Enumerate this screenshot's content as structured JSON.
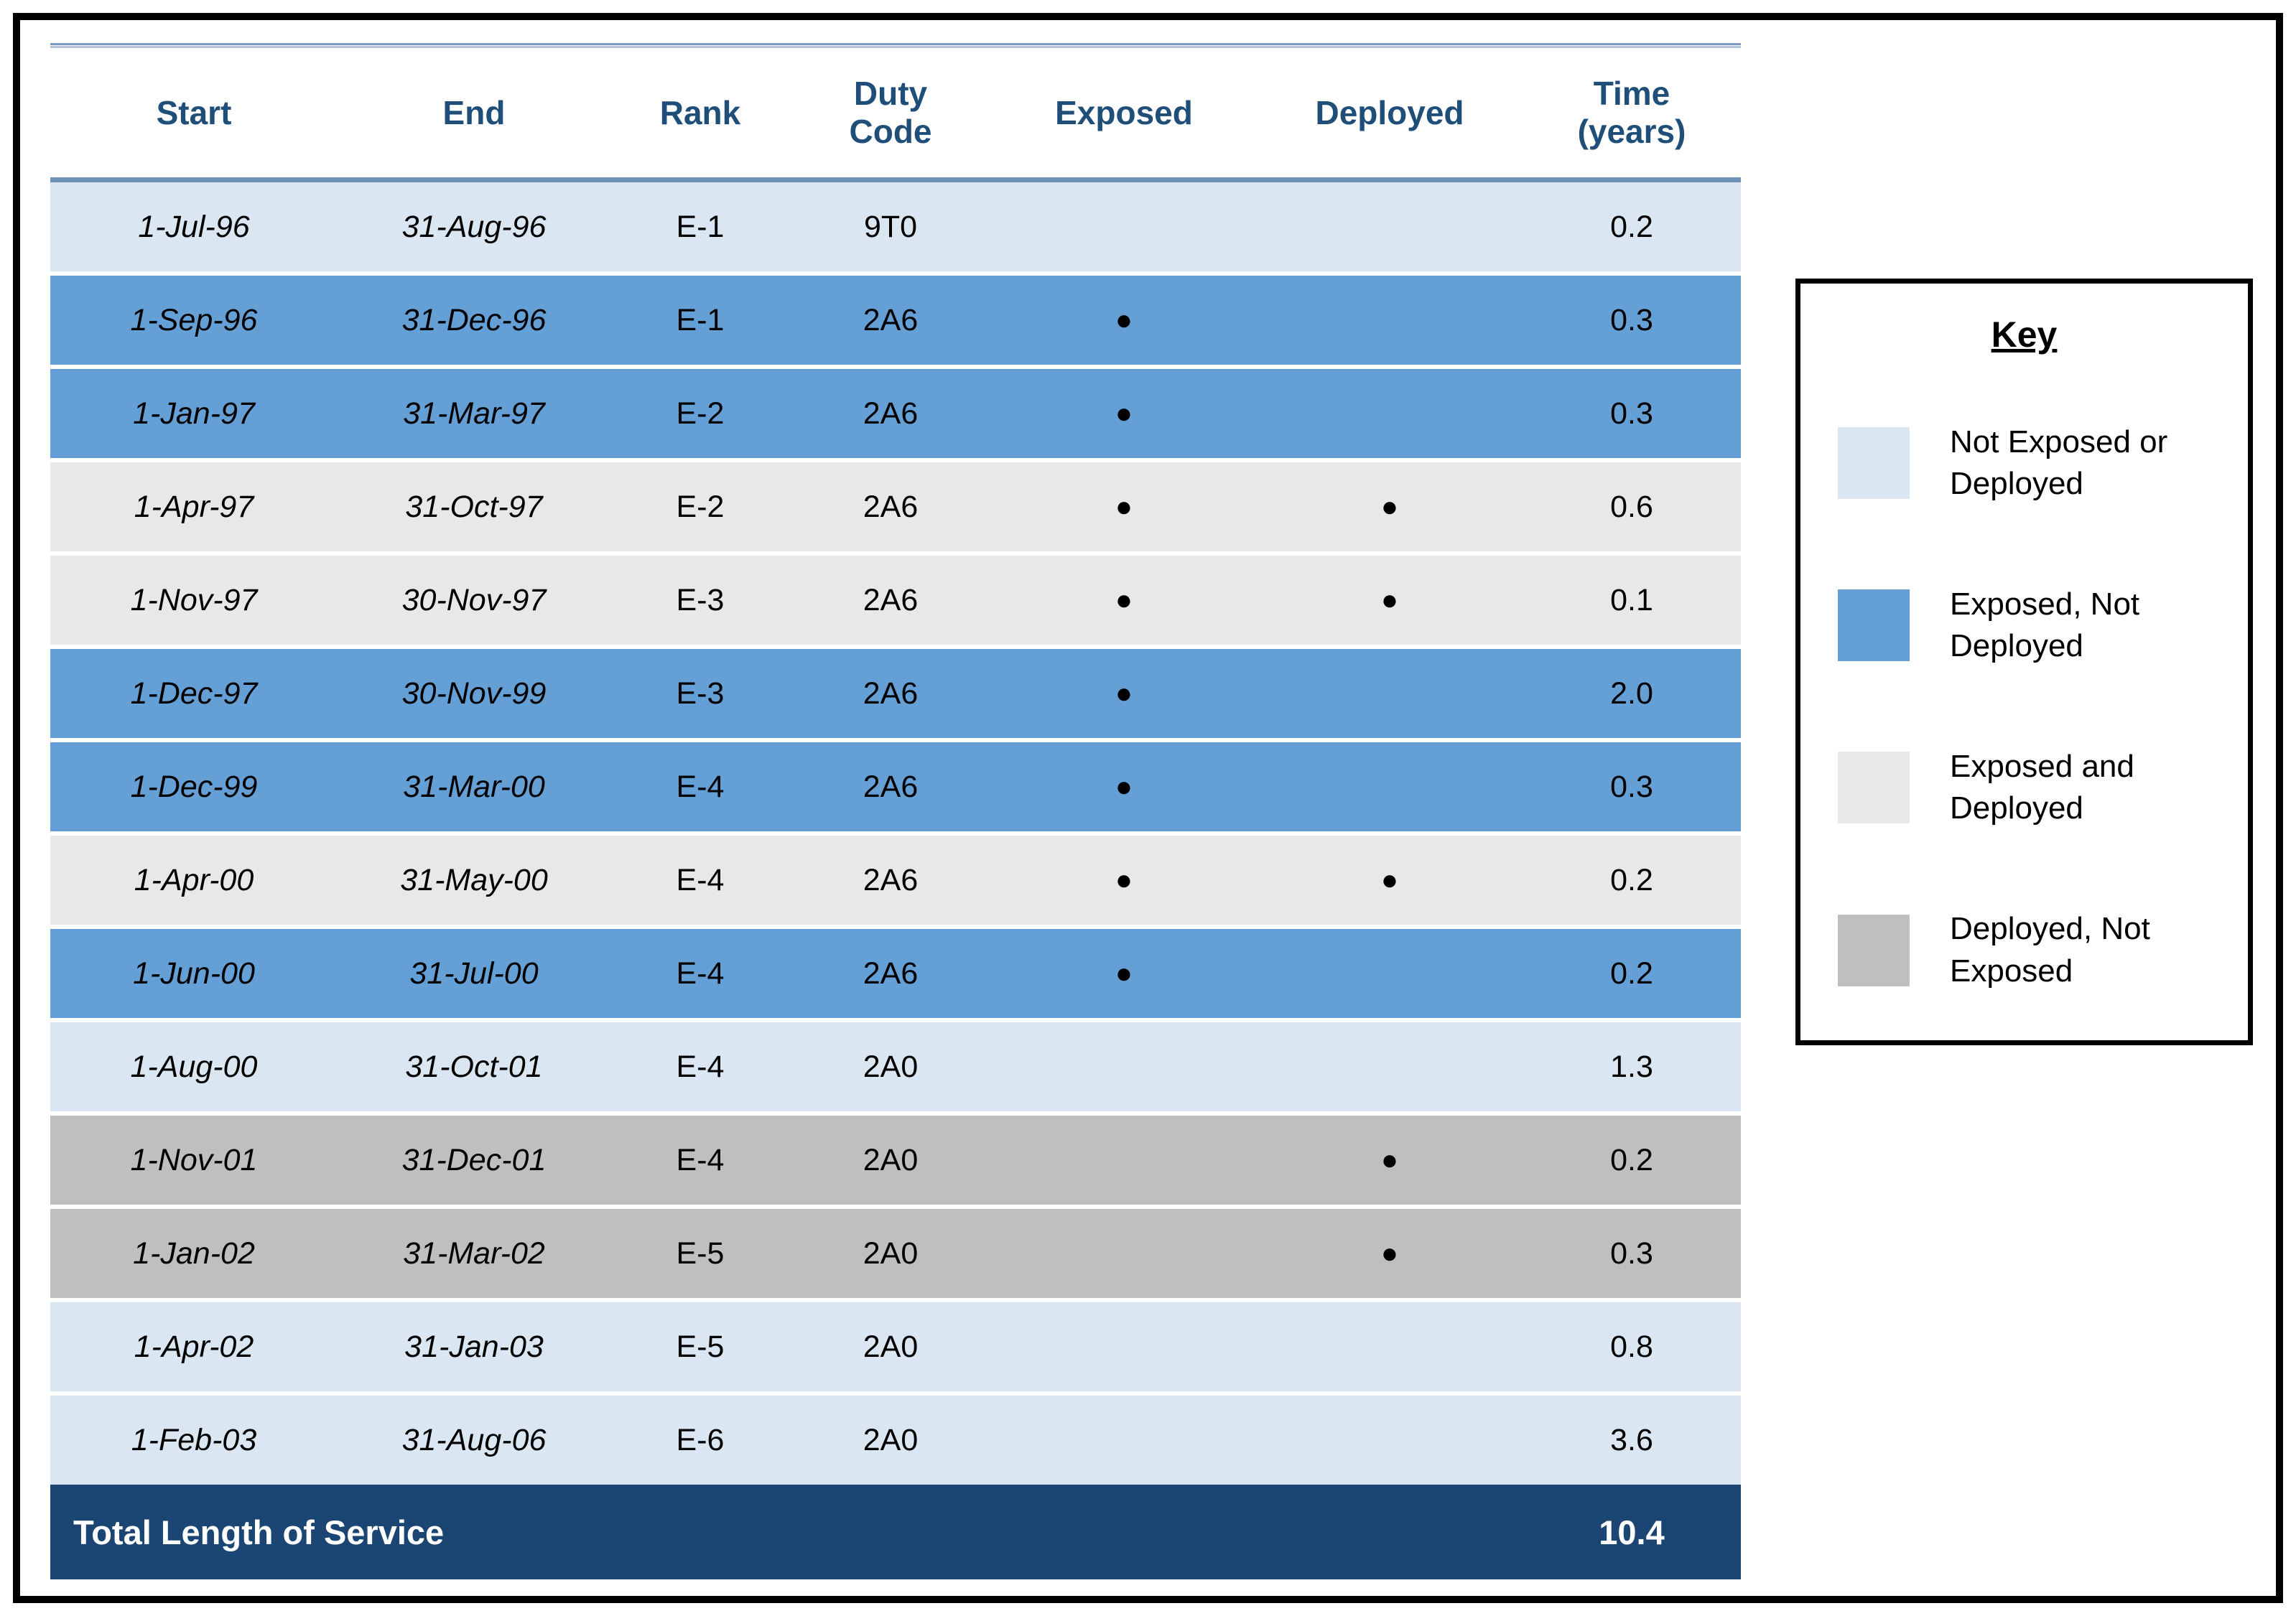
{
  "chart_data": {
    "type": "table",
    "columns": [
      "Start",
      "End",
      "Rank",
      "Duty\nCode",
      "Exposed",
      "Deployed",
      "Time\n(years)"
    ],
    "rows": [
      {
        "start": "1-Jul-96",
        "end": "31-Aug-96",
        "rank": "E-1",
        "duty_code": "9T0",
        "exposed": false,
        "deployed": false,
        "time_years": "0.2",
        "status": "not_exposed_or_deployed"
      },
      {
        "start": "1-Sep-96",
        "end": "31-Dec-96",
        "rank": "E-1",
        "duty_code": "2A6",
        "exposed": true,
        "deployed": false,
        "time_years": "0.3",
        "status": "exposed_not_deployed"
      },
      {
        "start": "1-Jan-97",
        "end": "31-Mar-97",
        "rank": "E-2",
        "duty_code": "2A6",
        "exposed": true,
        "deployed": false,
        "time_years": "0.3",
        "status": "exposed_not_deployed"
      },
      {
        "start": "1-Apr-97",
        "end": "31-Oct-97",
        "rank": "E-2",
        "duty_code": "2A6",
        "exposed": true,
        "deployed": true,
        "time_years": "0.6",
        "status": "exposed_and_deployed"
      },
      {
        "start": "1-Nov-97",
        "end": "30-Nov-97",
        "rank": "E-3",
        "duty_code": "2A6",
        "exposed": true,
        "deployed": true,
        "time_years": "0.1",
        "status": "exposed_and_deployed"
      },
      {
        "start": "1-Dec-97",
        "end": "30-Nov-99",
        "rank": "E-3",
        "duty_code": "2A6",
        "exposed": true,
        "deployed": false,
        "time_years": "2.0",
        "status": "exposed_not_deployed"
      },
      {
        "start": "1-Dec-99",
        "end": "31-Mar-00",
        "rank": "E-4",
        "duty_code": "2A6",
        "exposed": true,
        "deployed": false,
        "time_years": "0.3",
        "status": "exposed_not_deployed"
      },
      {
        "start": "1-Apr-00",
        "end": "31-May-00",
        "rank": "E-4",
        "duty_code": "2A6",
        "exposed": true,
        "deployed": true,
        "time_years": "0.2",
        "status": "exposed_and_deployed"
      },
      {
        "start": "1-Jun-00",
        "end": "31-Jul-00",
        "rank": "E-4",
        "duty_code": "2A6",
        "exposed": true,
        "deployed": false,
        "time_years": "0.2",
        "status": "exposed_not_deployed"
      },
      {
        "start": "1-Aug-00",
        "end": "31-Oct-01",
        "rank": "E-4",
        "duty_code": "2A0",
        "exposed": false,
        "deployed": false,
        "time_years": "1.3",
        "status": "not_exposed_or_deployed"
      },
      {
        "start": "1-Nov-01",
        "end": "31-Dec-01",
        "rank": "E-4",
        "duty_code": "2A0",
        "exposed": false,
        "deployed": true,
        "time_years": "0.2",
        "status": "deployed_not_exposed"
      },
      {
        "start": "1-Jan-02",
        "end": "31-Mar-02",
        "rank": "E-5",
        "duty_code": "2A0",
        "exposed": false,
        "deployed": true,
        "time_years": "0.3",
        "status": "deployed_not_exposed"
      },
      {
        "start": "1-Apr-02",
        "end": "31-Jan-03",
        "rank": "E-5",
        "duty_code": "2A0",
        "exposed": false,
        "deployed": false,
        "time_years": "0.8",
        "status": "not_exposed_or_deployed"
      },
      {
        "start": "1-Feb-03",
        "end": "31-Aug-06",
        "rank": "E-6",
        "duty_code": "2A0",
        "exposed": false,
        "deployed": false,
        "time_years": "3.6",
        "status": "not_exposed_or_deployed"
      }
    ],
    "total_row": {
      "label": "Total Length of Service",
      "time_years": "10.4"
    },
    "legend": {
      "title": "Key",
      "items": [
        {
          "label": "Not Exposed or\nDeployed",
          "status": "not_exposed_or_deployed"
        },
        {
          "label": "Exposed, Not\nDeployed",
          "status": "exposed_not_deployed"
        },
        {
          "label": "Exposed and\nDeployed",
          "status": "exposed_and_deployed"
        },
        {
          "label": "Deployed, Not\nExposed",
          "status": "deployed_not_exposed"
        }
      ]
    },
    "status_colors": {
      "not_exposed_or_deployed": "#dbe6f3",
      "exposed_not_deployed": "#64a0d6",
      "exposed_and_deployed": "#e8e8e8",
      "deployed_not_exposed": "#bfbfbf"
    },
    "bullet": "●",
    "accent_colors": {
      "header_text": "#1f4e79",
      "total_row_bg": "#1b4573",
      "total_row_text": "#ffffff"
    }
  }
}
